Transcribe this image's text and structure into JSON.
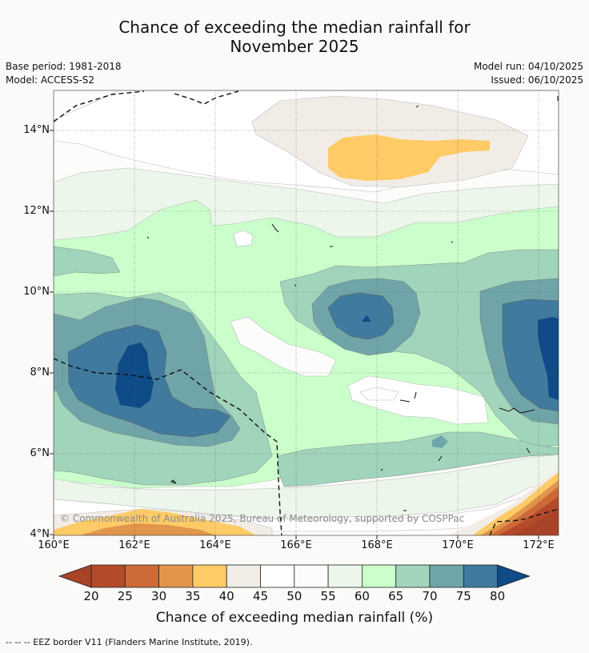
{
  "title": {
    "line1": "Chance of exceeding the median rainfall for",
    "line2": "November 2025"
  },
  "meta": {
    "base_period": "Base period: 1981-2018",
    "model": "Model: ACCESS-S2",
    "model_run": "Model run: 04/10/2025",
    "issued": "Issued: 06/10/2025"
  },
  "map": {
    "lat_labels": [
      "14°N",
      "12°N",
      "10°N",
      "8°N",
      "6°N",
      "4°N"
    ],
    "lon_labels": [
      "160°E",
      "162°E",
      "164°E",
      "166°E",
      "168°E",
      "170°E",
      "172°E"
    ],
    "copyright": "© Commonwealth of Australia 2025, Bureau of Meteorology, supported by COSPPac"
  },
  "colorbar": {
    "title": "Chance of exceeding median rainfall (%)",
    "ticks": [
      "20",
      "25",
      "30",
      "35",
      "40",
      "45",
      "50",
      "55",
      "60",
      "65",
      "70",
      "75",
      "80"
    ],
    "colors": [
      "#a94328",
      "#b44a2a",
      "#cd6a37",
      "#e0954b",
      "#fecb67",
      "#f2ece6",
      "#ffffff",
      "#fcfdfb",
      "#ecf6ea",
      "#caffcb",
      "#a0d4bb",
      "#6fa5a8",
      "#407a9e",
      "#0e4b87"
    ]
  },
  "footnote": "-- -- -- EEZ border V11 (Flanders Marine Institute, 2019)."
}
